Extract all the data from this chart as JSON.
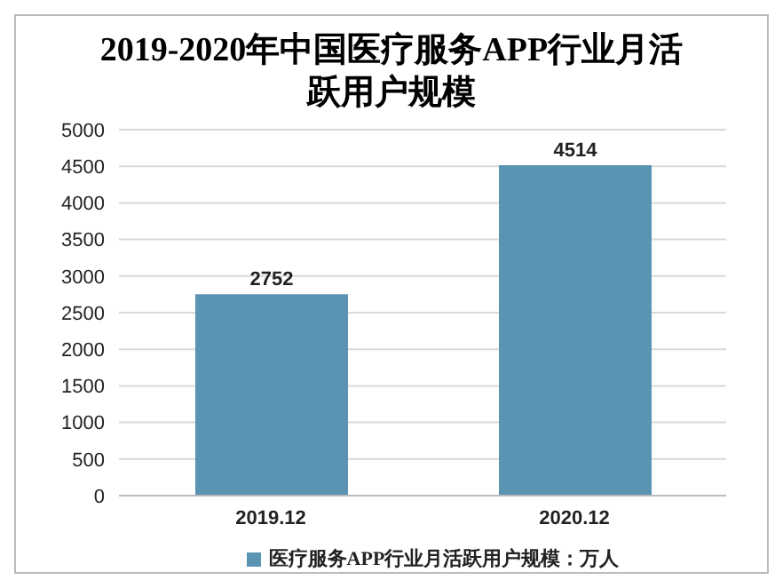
{
  "chart_data": {
    "type": "bar",
    "title": "2019-2020年中国医疗服务APP行业月活跃用户规模",
    "categories": [
      "2019.12",
      "2020.12"
    ],
    "series": [
      {
        "name": "医疗服务APP行业月活跃用户规模：万人",
        "color": "#5b93b3",
        "values": [
          2752,
          4514
        ]
      }
    ],
    "ylim": [
      0,
      5000
    ],
    "yticks": [
      0,
      500,
      1000,
      1500,
      2000,
      2500,
      3000,
      3500,
      4000,
      4500,
      5000
    ],
    "grid": "y",
    "data_labels": true,
    "legend": "bottom"
  }
}
